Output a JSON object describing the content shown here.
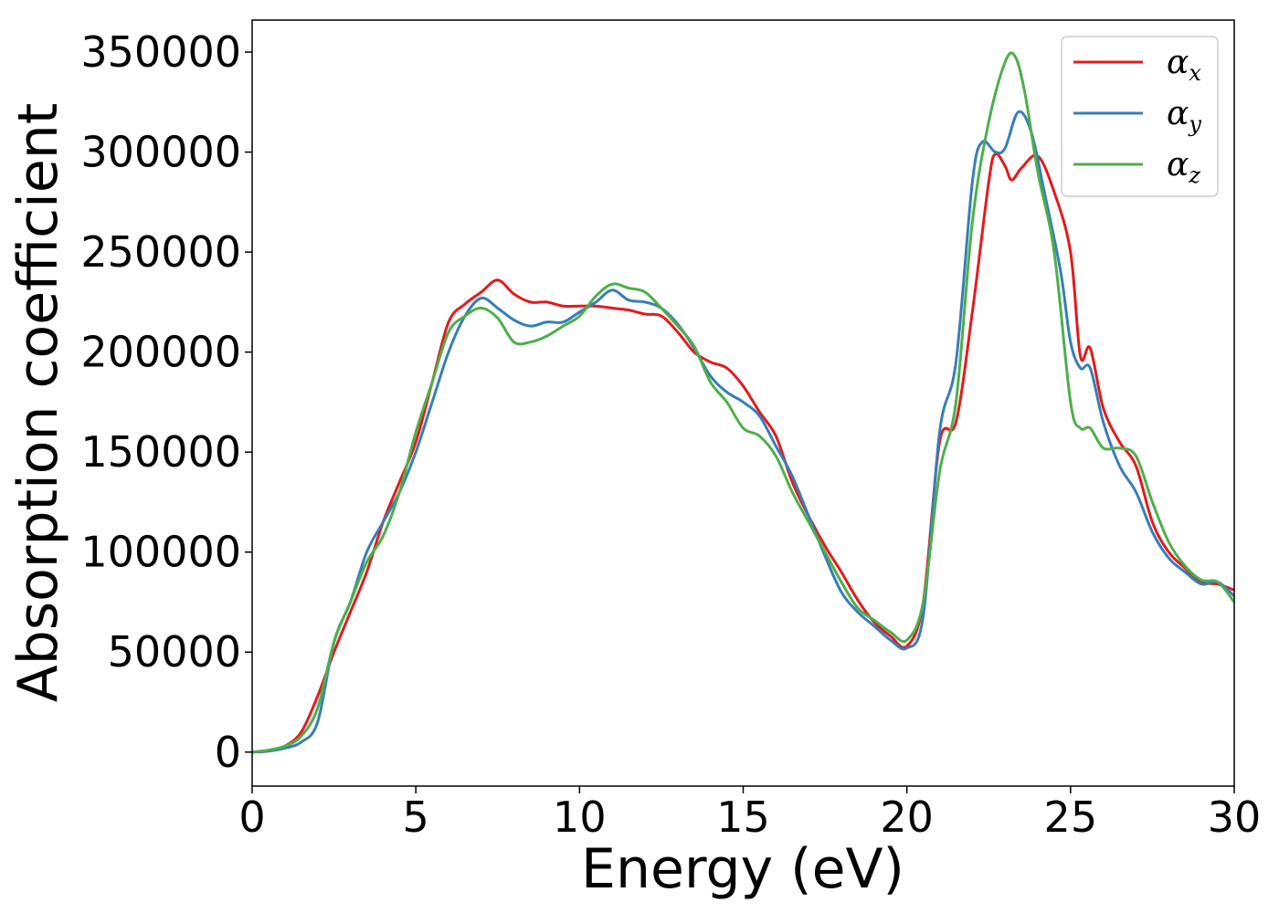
{
  "chart_data": {
    "type": "line",
    "title": "",
    "xlabel": "Energy (eV)",
    "ylabel": "Absorption coefficient",
    "xlim": [
      0,
      30
    ],
    "ylim": [
      -17000,
      366000
    ],
    "xticks": [
      0,
      5,
      10,
      15,
      20,
      25,
      30
    ],
    "xtick_labels": [
      "0",
      "5",
      "10",
      "15",
      "20",
      "25",
      "30"
    ],
    "yticks": [
      0,
      50000,
      100000,
      150000,
      200000,
      250000,
      300000,
      350000
    ],
    "ytick_labels": [
      "0",
      "50000",
      "100000",
      "150000",
      "200000",
      "250000",
      "300000",
      "350000"
    ],
    "grid": false,
    "legend_position": "top-right",
    "series": [
      {
        "name": "α",
        "name_subscript": "x",
        "color": "#e41a1c",
        "points": [
          [
            0,
            0
          ],
          [
            0.5,
            500
          ],
          [
            1,
            3000
          ],
          [
            1.5,
            10000
          ],
          [
            2,
            28000
          ],
          [
            2.5,
            50000
          ],
          [
            3,
            70000
          ],
          [
            3.5,
            90000
          ],
          [
            4,
            115000
          ],
          [
            4.5,
            135000
          ],
          [
            5,
            155000
          ],
          [
            5.5,
            185000
          ],
          [
            6,
            215000
          ],
          [
            6.5,
            224000
          ],
          [
            7,
            230000
          ],
          [
            7.5,
            236000
          ],
          [
            8,
            229000
          ],
          [
            8.5,
            225000
          ],
          [
            9,
            225000
          ],
          [
            9.5,
            223000
          ],
          [
            10,
            223000
          ],
          [
            10.5,
            223000
          ],
          [
            11,
            222000
          ],
          [
            11.5,
            221000
          ],
          [
            12,
            219000
          ],
          [
            12.5,
            218000
          ],
          [
            13,
            210000
          ],
          [
            13.5,
            200000
          ],
          [
            14,
            195000
          ],
          [
            14.5,
            192000
          ],
          [
            15,
            183000
          ],
          [
            15.5,
            170000
          ],
          [
            16,
            158000
          ],
          [
            16.5,
            135000
          ],
          [
            17,
            118000
          ],
          [
            17.5,
            103000
          ],
          [
            18,
            90000
          ],
          [
            18.5,
            76000
          ],
          [
            19,
            65000
          ],
          [
            19.5,
            58000
          ],
          [
            20,
            53000
          ],
          [
            20.5,
            75000
          ],
          [
            21,
            155000
          ],
          [
            21.5,
            165000
          ],
          [
            22,
            220000
          ],
          [
            22.5,
            285000
          ],
          [
            22.7,
            299000
          ],
          [
            23,
            293000
          ],
          [
            23.2,
            286000
          ],
          [
            23.5,
            292000
          ],
          [
            24,
            298000
          ],
          [
            24.5,
            280000
          ],
          [
            25,
            250000
          ],
          [
            25.3,
            198000
          ],
          [
            25.6,
            202000
          ],
          [
            26,
            172000
          ],
          [
            26.5,
            155000
          ],
          [
            27,
            143000
          ],
          [
            27.5,
            115000
          ],
          [
            28,
            100000
          ],
          [
            28.5,
            92000
          ],
          [
            29,
            85000
          ],
          [
            29.5,
            84000
          ],
          [
            30,
            81000
          ]
        ]
      },
      {
        "name": "α",
        "name_subscript": "y",
        "color": "#377eb8",
        "points": [
          [
            0,
            0
          ],
          [
            0.5,
            500
          ],
          [
            1,
            2000
          ],
          [
            1.5,
            5000
          ],
          [
            2,
            15000
          ],
          [
            2.5,
            55000
          ],
          [
            3,
            75000
          ],
          [
            3.5,
            100000
          ],
          [
            4,
            115000
          ],
          [
            4.5,
            130000
          ],
          [
            5,
            150000
          ],
          [
            5.5,
            175000
          ],
          [
            6,
            200000
          ],
          [
            6.5,
            218000
          ],
          [
            7,
            227000
          ],
          [
            7.5,
            222000
          ],
          [
            8,
            216000
          ],
          [
            8.5,
            213000
          ],
          [
            9,
            215000
          ],
          [
            9.5,
            215000
          ],
          [
            10,
            220000
          ],
          [
            10.5,
            225000
          ],
          [
            11,
            231000
          ],
          [
            11.5,
            226000
          ],
          [
            12,
            225000
          ],
          [
            12.5,
            222000
          ],
          [
            13,
            214000
          ],
          [
            13.5,
            202000
          ],
          [
            14,
            188000
          ],
          [
            14.5,
            180000
          ],
          [
            15,
            175000
          ],
          [
            15.5,
            168000
          ],
          [
            16,
            153000
          ],
          [
            16.5,
            138000
          ],
          [
            17,
            118000
          ],
          [
            17.5,
            98000
          ],
          [
            18,
            80000
          ],
          [
            18.5,
            70000
          ],
          [
            19,
            63000
          ],
          [
            19.5,
            56000
          ],
          [
            20,
            52000
          ],
          [
            20.5,
            68000
          ],
          [
            21,
            160000
          ],
          [
            21.5,
            195000
          ],
          [
            22,
            285000
          ],
          [
            22.3,
            305000
          ],
          [
            22.7,
            300000
          ],
          [
            23,
            302000
          ],
          [
            23.4,
            320000
          ],
          [
            23.8,
            310000
          ],
          [
            24.2,
            280000
          ],
          [
            24.7,
            240000
          ],
          [
            25,
            205000
          ],
          [
            25.3,
            192000
          ],
          [
            25.6,
            192000
          ],
          [
            26,
            165000
          ],
          [
            26.5,
            143000
          ],
          [
            27,
            130000
          ],
          [
            27.5,
            110000
          ],
          [
            28,
            97000
          ],
          [
            28.5,
            90000
          ],
          [
            29,
            84000
          ],
          [
            29.5,
            85000
          ],
          [
            30,
            78000
          ]
        ]
      },
      {
        "name": "α",
        "name_subscript": "z",
        "color": "#4daf4a",
        "points": [
          [
            0,
            0
          ],
          [
            0.5,
            1000
          ],
          [
            1,
            3000
          ],
          [
            1.5,
            8000
          ],
          [
            2,
            22000
          ],
          [
            2.5,
            55000
          ],
          [
            3,
            75000
          ],
          [
            3.5,
            95000
          ],
          [
            4,
            108000
          ],
          [
            4.5,
            130000
          ],
          [
            5,
            160000
          ],
          [
            5.5,
            185000
          ],
          [
            6,
            210000
          ],
          [
            6.5,
            218000
          ],
          [
            7,
            222000
          ],
          [
            7.5,
            217000
          ],
          [
            8,
            205000
          ],
          [
            8.5,
            205000
          ],
          [
            9,
            208000
          ],
          [
            9.5,
            213000
          ],
          [
            10,
            218000
          ],
          [
            10.5,
            228000
          ],
          [
            11,
            234000
          ],
          [
            11.5,
            232000
          ],
          [
            12,
            230000
          ],
          [
            12.5,
            222000
          ],
          [
            13,
            213000
          ],
          [
            13.5,
            203000
          ],
          [
            14,
            185000
          ],
          [
            14.5,
            175000
          ],
          [
            15,
            162000
          ],
          [
            15.5,
            158000
          ],
          [
            16,
            148000
          ],
          [
            16.5,
            130000
          ],
          [
            17,
            115000
          ],
          [
            17.5,
            100000
          ],
          [
            18,
            85000
          ],
          [
            18.5,
            72000
          ],
          [
            19,
            66000
          ],
          [
            19.5,
            60000
          ],
          [
            20,
            56000
          ],
          [
            20.5,
            75000
          ],
          [
            21,
            140000
          ],
          [
            21.5,
            175000
          ],
          [
            22,
            265000
          ],
          [
            22.5,
            315000
          ],
          [
            23,
            345000
          ],
          [
            23.3,
            348000
          ],
          [
            23.6,
            330000
          ],
          [
            24,
            290000
          ],
          [
            24.5,
            250000
          ],
          [
            25,
            175000
          ],
          [
            25.3,
            162000
          ],
          [
            25.6,
            162000
          ],
          [
            26,
            152000
          ],
          [
            26.5,
            152000
          ],
          [
            27,
            148000
          ],
          [
            27.5,
            125000
          ],
          [
            28,
            105000
          ],
          [
            28.5,
            93000
          ],
          [
            29,
            86000
          ],
          [
            29.5,
            85000
          ],
          [
            30,
            75000
          ]
        ]
      }
    ]
  }
}
